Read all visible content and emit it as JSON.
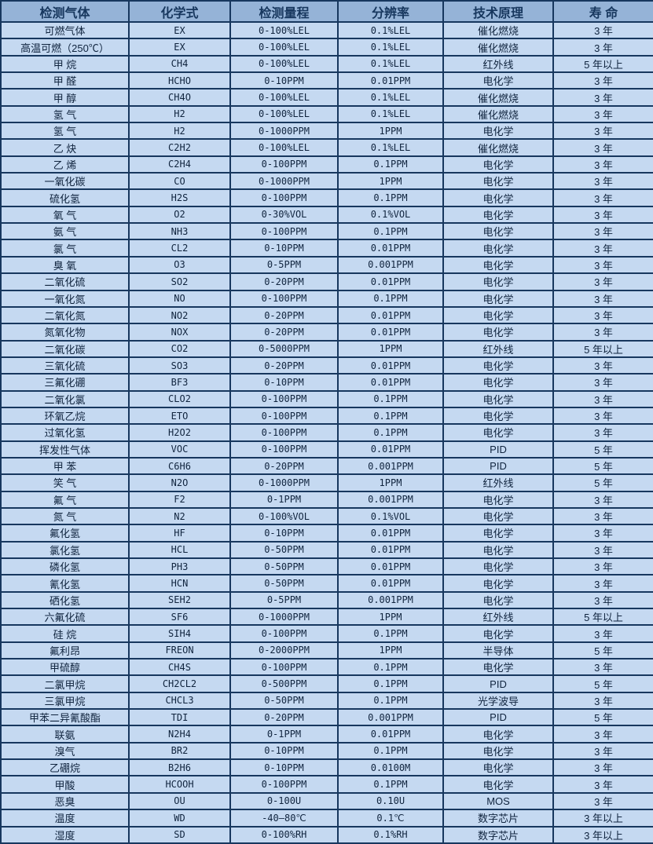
{
  "table": {
    "headers": [
      "检测气体",
      "化学式",
      "检测量程",
      "分辨率",
      "技术原理",
      "寿 命"
    ],
    "rows": [
      [
        "可燃气体",
        "EX",
        "0-100%LEL",
        "0.1%LEL",
        "催化燃烧",
        "3 年"
      ],
      [
        "高温可燃（250℃）",
        "EX",
        "0-100%LEL",
        "0.1%LEL",
        "催化燃烧",
        "3 年"
      ],
      [
        "甲 烷",
        "CH4",
        "0-100%LEL",
        "0.1%LEL",
        "红外线",
        "5 年以上"
      ],
      [
        "甲 醛",
        "HCHO",
        "0-10PPM",
        "0.01PPM",
        "电化学",
        "3 年"
      ],
      [
        "甲 醇",
        "CH4O",
        "0-100%LEL",
        "0.1%LEL",
        "催化燃烧",
        "3 年"
      ],
      [
        "氢 气",
        "H2",
        "0-100%LEL",
        "0.1%LEL",
        "催化燃烧",
        "3 年"
      ],
      [
        "氢 气",
        "H2",
        "0-1000PPM",
        "1PPM",
        "电化学",
        "3 年"
      ],
      [
        "乙 炔",
        "C2H2",
        "0-100%LEL",
        "0.1%LEL",
        "催化燃烧",
        "3 年"
      ],
      [
        "乙 烯",
        "C2H4",
        "0-100PPM",
        "0.1PPM",
        "电化学",
        "3 年"
      ],
      [
        "一氧化碳",
        "CO",
        "0-1000PPM",
        "1PPM",
        "电化学",
        "3 年"
      ],
      [
        "硫化氢",
        "H2S",
        "0-100PPM",
        "0.1PPM",
        "电化学",
        "3 年"
      ],
      [
        "氧 气",
        "O2",
        "0-30%VOL",
        "0.1%VOL",
        "电化学",
        "3 年"
      ],
      [
        "氨 气",
        "NH3",
        "0-100PPM",
        "0.1PPM",
        "电化学",
        "3 年"
      ],
      [
        "氯 气",
        "CL2",
        "0-10PPM",
        "0.01PPM",
        "电化学",
        "3 年"
      ],
      [
        "臭 氧",
        "O3",
        "0-5PPM",
        "0.001PPM",
        "电化学",
        "3 年"
      ],
      [
        "二氧化硫",
        "SO2",
        "0-20PPM",
        "0.01PPM",
        "电化学",
        "3 年"
      ],
      [
        "一氧化氮",
        "NO",
        "0-100PPM",
        "0.1PPM",
        "电化学",
        "3 年"
      ],
      [
        "二氧化氮",
        "NO2",
        "0-20PPM",
        "0.01PPM",
        "电化学",
        "3 年"
      ],
      [
        "氮氧化物",
        "NOX",
        "0-20PPM",
        "0.01PPM",
        "电化学",
        "3 年"
      ],
      [
        "二氧化碳",
        "CO2",
        "0-5000PPM",
        "1PPM",
        "红外线",
        "5 年以上"
      ],
      [
        "三氧化硫",
        "SO3",
        "0-20PPM",
        "0.01PPM",
        "电化学",
        "3 年"
      ],
      [
        "三氟化硼",
        "BF3",
        "0-10PPM",
        "0.01PPM",
        "电化学",
        "3 年"
      ],
      [
        "二氧化氯",
        "CLO2",
        "0-100PPM",
        "0.1PPM",
        "电化学",
        "3 年"
      ],
      [
        "环氧乙烷",
        "ETO",
        "0-100PPM",
        "0.1PPM",
        "电化学",
        "3 年"
      ],
      [
        "过氧化氢",
        "H2O2",
        "0-100PPM",
        "0.1PPM",
        "电化学",
        "3 年"
      ],
      [
        "挥发性气体",
        "VOC",
        "0-100PPM",
        "0.01PPM",
        "PID",
        "5 年"
      ],
      [
        "甲 苯",
        "C6H6",
        "0-20PPM",
        "0.001PPM",
        "PID",
        "5 年"
      ],
      [
        "笑 气",
        "N2O",
        "0-1000PPM",
        "1PPM",
        "红外线",
        "5 年"
      ],
      [
        "氟 气",
        "F2",
        "0-1PPM",
        "0.001PPM",
        "电化学",
        "3 年"
      ],
      [
        "氮 气",
        "N2",
        "0-100%VOL",
        "0.1%VOL",
        "电化学",
        "3 年"
      ],
      [
        "氟化氢",
        "HF",
        "0-10PPM",
        "0.01PPM",
        "电化学",
        "3 年"
      ],
      [
        "氯化氢",
        "HCL",
        "0-50PPM",
        "0.01PPM",
        "电化学",
        "3 年"
      ],
      [
        "磷化氢",
        "PH3",
        "0-50PPM",
        "0.01PPM",
        "电化学",
        "3 年"
      ],
      [
        "氰化氢",
        "HCN",
        "0-50PPM",
        "0.01PPM",
        "电化学",
        "3 年"
      ],
      [
        "硒化氢",
        "SEH2",
        "0-5PPM",
        "0.001PPM",
        "电化学",
        "3 年"
      ],
      [
        "六氟化硫",
        "SF6",
        "0-1000PPM",
        "1PPM",
        "红外线",
        "5 年以上"
      ],
      [
        "硅 烷",
        "SIH4",
        "0-100PPM",
        "0.1PPM",
        "电化学",
        "3 年"
      ],
      [
        "氟利昂",
        "FREON",
        "0-2000PPM",
        "1PPM",
        "半导体",
        "5 年"
      ],
      [
        "甲硫醇",
        "CH4S",
        "0-100PPM",
        "0.1PPM",
        "电化学",
        "3 年"
      ],
      [
        "二氯甲烷",
        "CH2CL2",
        "0-500PPM",
        "0.1PPM",
        "PID",
        "5 年"
      ],
      [
        "三氯甲烷",
        "CHCL3",
        "0-50PPM",
        "0.1PPM",
        "光学波导",
        "3 年"
      ],
      [
        "甲苯二异氰酸酯",
        "TDI",
        "0-20PPM",
        "0.001PPM",
        "PID",
        "5 年"
      ],
      [
        "联氨",
        "N2H4",
        "0-1PPM",
        "0.01PPM",
        "电化学",
        "3 年"
      ],
      [
        "溴气",
        "BR2",
        "0-10PPM",
        "0.1PPM",
        "电化学",
        "3 年"
      ],
      [
        "乙硼烷",
        "B2H6",
        "0-10PPM",
        "0.0100M",
        "电化学",
        "3 年"
      ],
      [
        "甲酸",
        "HCOOH",
        "0-100PPM",
        "0.1PPM",
        "电化学",
        "3 年"
      ],
      [
        "恶臭",
        "OU",
        "0-100U",
        "0.10U",
        "MOS",
        "3 年"
      ],
      [
        "温度",
        "WD",
        "-40—80℃",
        "0.1℃",
        "数字芯片",
        "3 年以上"
      ],
      [
        "湿度",
        "SD",
        "0-100%RH",
        "0.1%RH",
        "数字芯片",
        "3 年以上"
      ]
    ]
  },
  "colors": {
    "header_bg": "#95b3d7",
    "row_bg": "#c5d9f1",
    "border": "#17375e",
    "header_text": "#17375e",
    "body_text": "#10243e"
  }
}
